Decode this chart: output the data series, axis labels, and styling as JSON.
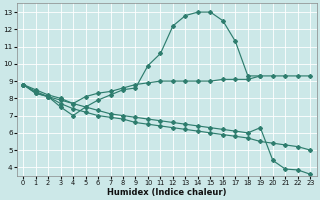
{
  "xlabel": "Humidex (Indice chaleur)",
  "bg_color": "#cce8e8",
  "line_color": "#2e7d6e",
  "grid_color": "#ffffff",
  "xlim": [
    -0.5,
    23.5
  ],
  "ylim": [
    3.5,
    13.5
  ],
  "xticks": [
    0,
    1,
    2,
    3,
    4,
    5,
    6,
    7,
    8,
    9,
    10,
    11,
    12,
    13,
    14,
    15,
    16,
    17,
    18,
    19,
    20,
    21,
    22,
    23
  ],
  "yticks": [
    4,
    5,
    6,
    7,
    8,
    9,
    10,
    11,
    12,
    13
  ],
  "line_peak_x": [
    0,
    1,
    2,
    3,
    4,
    5,
    6,
    7,
    8,
    9,
    10,
    11,
    12,
    13,
    14,
    15,
    16,
    17,
    18,
    19
  ],
  "line_peak_y": [
    8.8,
    8.3,
    8.1,
    7.5,
    7.0,
    7.5,
    7.9,
    8.2,
    8.5,
    8.6,
    9.9,
    10.6,
    12.2,
    12.8,
    13.0,
    13.0,
    12.5,
    11.3,
    9.3,
    9.3
  ],
  "line_flat_x": [
    0,
    1,
    2,
    3,
    4,
    5,
    6,
    7,
    8,
    9,
    10,
    11,
    12,
    13,
    14,
    15,
    16,
    17,
    18,
    19,
    20,
    21,
    22,
    23
  ],
  "line_flat_y": [
    8.8,
    8.3,
    8.1,
    7.9,
    7.7,
    8.1,
    8.3,
    8.4,
    8.6,
    8.8,
    8.9,
    9.0,
    9.0,
    9.0,
    9.0,
    9.0,
    9.1,
    9.1,
    9.1,
    9.3,
    9.3,
    9.3,
    9.3,
    9.3
  ],
  "line_diag1_x": [
    0,
    1,
    2,
    3,
    4,
    5,
    6,
    7,
    8,
    9,
    10,
    11,
    12,
    13,
    14,
    15,
    16,
    17,
    18,
    19,
    20,
    21,
    22,
    23
  ],
  "line_diag1_y": [
    8.8,
    8.5,
    8.2,
    8.0,
    7.7,
    7.5,
    7.3,
    7.1,
    7.0,
    6.9,
    6.8,
    6.7,
    6.6,
    6.5,
    6.4,
    6.3,
    6.2,
    6.1,
    6.0,
    6.3,
    4.4,
    3.9,
    3.85,
    3.6
  ],
  "line_diag2_x": [
    0,
    1,
    2,
    3,
    4,
    5,
    6,
    7,
    8,
    9,
    10,
    11,
    12,
    13,
    14,
    15,
    16,
    17,
    18,
    19,
    20,
    21,
    22,
    23
  ],
  "line_diag2_y": [
    8.8,
    8.4,
    8.1,
    7.7,
    7.4,
    7.2,
    7.0,
    6.9,
    6.8,
    6.6,
    6.5,
    6.4,
    6.3,
    6.2,
    6.1,
    6.0,
    5.9,
    5.8,
    5.7,
    5.5,
    5.4,
    5.3,
    5.2,
    5.0
  ]
}
